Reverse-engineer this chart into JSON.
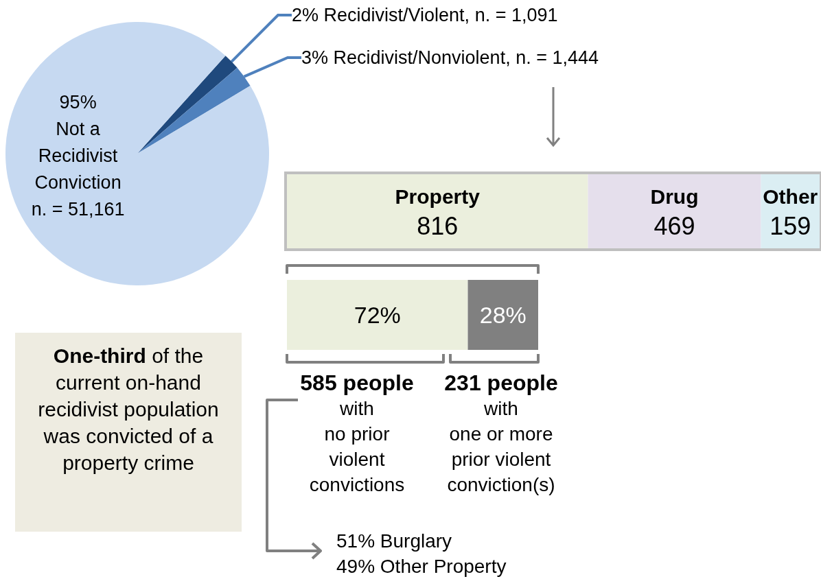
{
  "chart_data": [
    {
      "type": "pie",
      "categories": [
        null,
        null,
        null
      ],
      "values": [
        1091,
        1444,
        51161
      ],
      "colors": [
        "#1f497d",
        "#4f81bd",
        "#c6d9f1"
      ],
      "value_labels": [
        "2% Recidivist/Violent, n. = 1,091",
        "3% Recidivist/Nonviolent, n. = 1,444",
        "95%\nNot a\nRecidivist\nConviction\nn. = 51,161"
      ]
    },
    {
      "type": "bar",
      "orientation": "horizontal",
      "stacked": true,
      "tick_labels": false,
      "data_labels": true,
      "categories": [
        null
      ],
      "series": [
        {
          "name": "Property",
          "color": "#ebefdd",
          "values": [
            816
          ]
        },
        {
          "name": "Drug",
          "color": "#e5dfec",
          "values": [
            469
          ]
        },
        {
          "name": "Other",
          "color": "#dbeef3",
          "values": [
            159
          ]
        }
      ]
    },
    {
      "type": "bar",
      "orientation": "horizontal",
      "stacked": true,
      "tick_labels": false,
      "categories": [
        null
      ],
      "series": [
        {
          "color": "#ebefdd",
          "values": [
            72
          ],
          "value_labels": [
            "72%"
          ]
        },
        {
          "color": "#808080",
          "values": [
            28
          ],
          "value_labels": [
            "28%"
          ]
        }
      ],
      "annotations": [
        "585 people\nwith\nno prior\nviolent\nconvictions",
        "231 people\nwith\none or more\nprior violent\nconviction(s)",
        "51% Burglary\n49% Other Property"
      ]
    },
    {
      "type": "other",
      "title": "One-third",
      "annotations": [
        "of the current on-hand recidivist population was convicted of a property crime"
      ]
    }
  ]
}
